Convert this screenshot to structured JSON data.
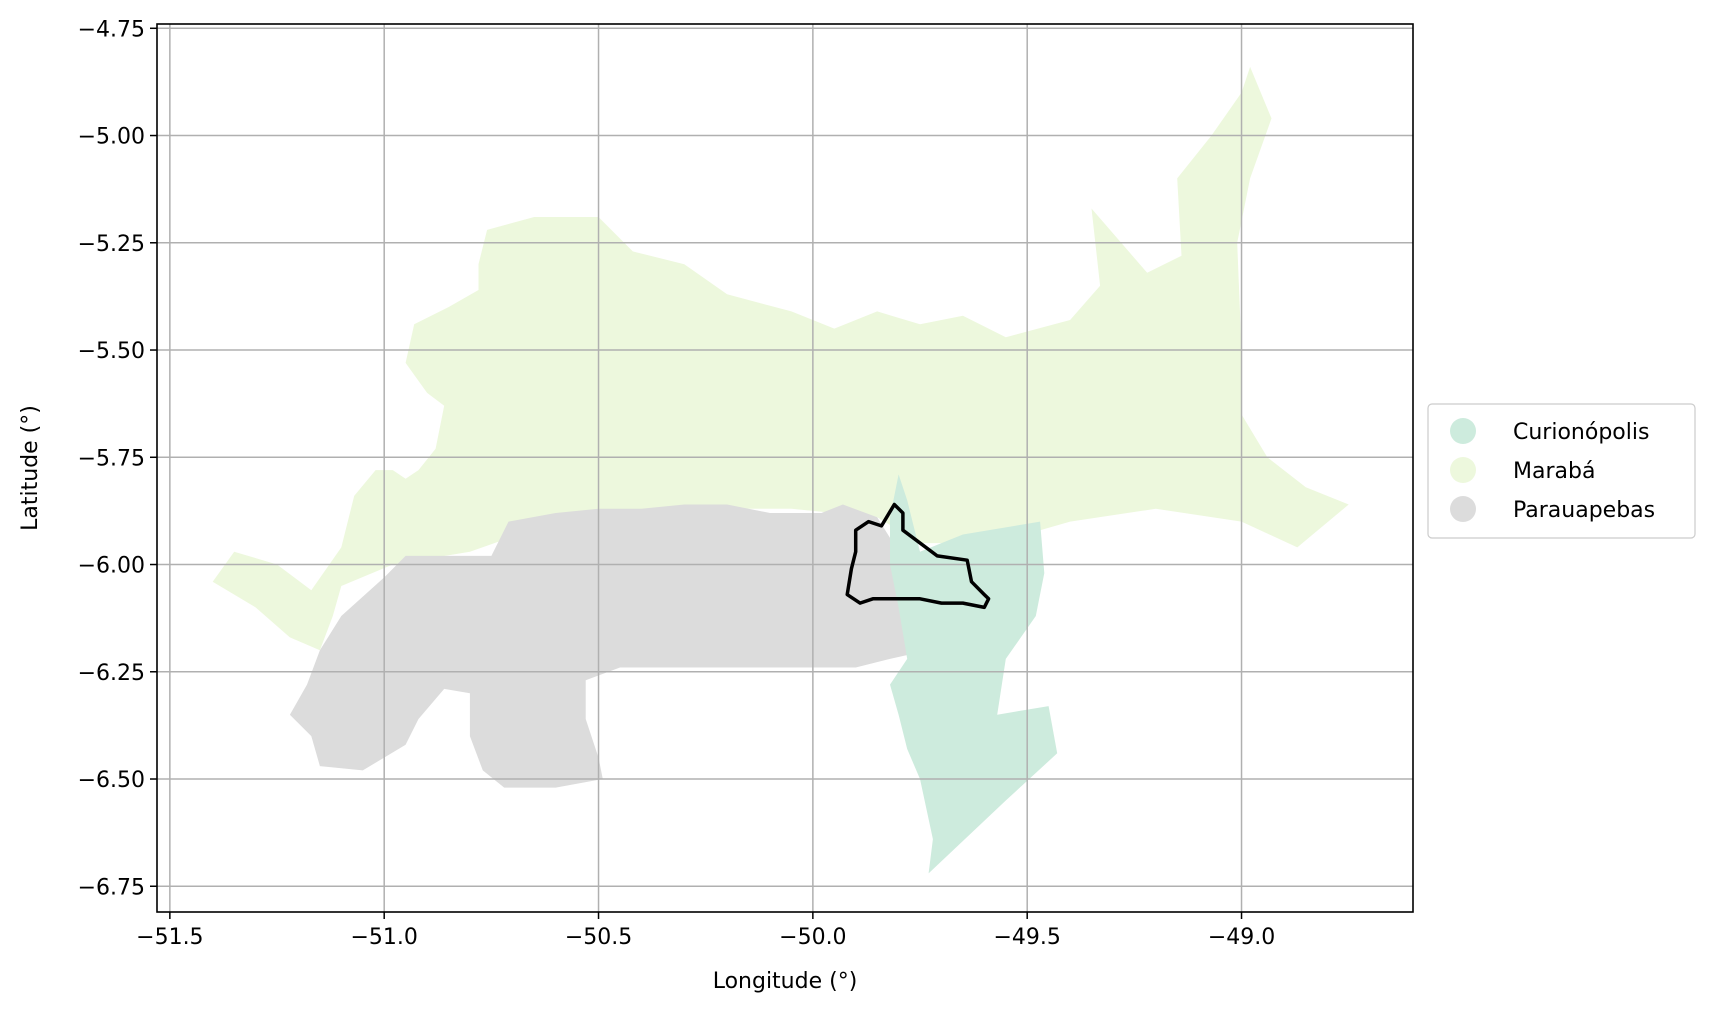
{
  "chart_data": {
    "type": "choropleth-map",
    "xlabel": "Longitude (°)",
    "ylabel": "Latitude (°)",
    "xlim": [
      -51.53,
      -48.6
    ],
    "ylim": [
      -6.81,
      -4.74
    ],
    "xticks": [
      -51.5,
      -51.0,
      -50.5,
      -50.0,
      -49.5,
      -49.0
    ],
    "yticks": [
      -4.75,
      -5.0,
      -5.25,
      -5.5,
      -5.75,
      -6.0,
      -6.25,
      -6.5,
      -6.75
    ],
    "xtick_labels": [
      "−51.5",
      "−51.0",
      "−50.5",
      "−50.0",
      "−49.5",
      "−49.0"
    ],
    "ytick_labels": [
      "−4.75",
      "−5.00",
      "−5.25",
      "−5.50",
      "−5.75",
      "−6.00",
      "−6.25",
      "−6.50",
      "−6.75"
    ],
    "grid": true,
    "legend": {
      "placement": "right",
      "entries": [
        {
          "name": "Curionópolis",
          "color": "#cdebdd"
        },
        {
          "name": "Marabá",
          "color": "#edf8dd"
        },
        {
          "name": "Parauapebas",
          "color": "#dcdcdc"
        }
      ]
    },
    "regions": [
      {
        "name": "Marabá",
        "color": "#edf8dd",
        "coords": [
          [
            -51.4,
            -6.04
          ],
          [
            -51.35,
            -5.97
          ],
          [
            -51.25,
            -6.0
          ],
          [
            -51.17,
            -6.06
          ],
          [
            -51.1,
            -5.96
          ],
          [
            -51.07,
            -5.84
          ],
          [
            -51.02,
            -5.78
          ],
          [
            -50.98,
            -5.78
          ],
          [
            -50.95,
            -5.8
          ],
          [
            -50.92,
            -5.78
          ],
          [
            -50.88,
            -5.73
          ],
          [
            -50.86,
            -5.63
          ],
          [
            -50.9,
            -5.6
          ],
          [
            -50.95,
            -5.53
          ],
          [
            -50.93,
            -5.44
          ],
          [
            -50.85,
            -5.4
          ],
          [
            -50.78,
            -5.36
          ],
          [
            -50.78,
            -5.3
          ],
          [
            -50.76,
            -5.22
          ],
          [
            -50.65,
            -5.19
          ],
          [
            -50.5,
            -5.19
          ],
          [
            -50.42,
            -5.27
          ],
          [
            -50.3,
            -5.3
          ],
          [
            -50.2,
            -5.37
          ],
          [
            -50.05,
            -5.41
          ],
          [
            -49.95,
            -5.45
          ],
          [
            -49.85,
            -5.41
          ],
          [
            -49.75,
            -5.44
          ],
          [
            -49.65,
            -5.42
          ],
          [
            -49.55,
            -5.47
          ],
          [
            -49.4,
            -5.43
          ],
          [
            -49.33,
            -5.35
          ],
          [
            -49.35,
            -5.17
          ],
          [
            -49.22,
            -5.32
          ],
          [
            -49.14,
            -5.28
          ],
          [
            -49.15,
            -5.1
          ],
          [
            -49.07,
            -5.0
          ],
          [
            -49.0,
            -4.9
          ],
          [
            -48.98,
            -4.84
          ],
          [
            -48.93,
            -4.96
          ],
          [
            -48.98,
            -5.1
          ],
          [
            -49.01,
            -5.25
          ],
          [
            -49.0,
            -5.5
          ],
          [
            -49.0,
            -5.65
          ],
          [
            -48.94,
            -5.75
          ],
          [
            -48.85,
            -5.82
          ],
          [
            -48.75,
            -5.86
          ],
          [
            -48.87,
            -5.96
          ],
          [
            -49.0,
            -5.9
          ],
          [
            -49.2,
            -5.87
          ],
          [
            -49.4,
            -5.9
          ],
          [
            -49.47,
            -5.92
          ],
          [
            -49.65,
            -5.95
          ],
          [
            -49.75,
            -5.95
          ],
          [
            -49.85,
            -5.89
          ],
          [
            -49.95,
            -5.88
          ],
          [
            -50.05,
            -5.87
          ],
          [
            -50.2,
            -5.87
          ],
          [
            -50.4,
            -5.88
          ],
          [
            -50.6,
            -5.9
          ],
          [
            -50.8,
            -5.97
          ],
          [
            -50.98,
            -6.0
          ],
          [
            -51.1,
            -6.05
          ],
          [
            -51.12,
            -6.12
          ],
          [
            -51.15,
            -6.2
          ],
          [
            -51.22,
            -6.17
          ],
          [
            -51.3,
            -6.1
          ],
          [
            -51.4,
            -6.04
          ]
        ]
      },
      {
        "name": "Parauapebas",
        "color": "#dcdcdc",
        "coords": [
          [
            -51.15,
            -6.2
          ],
          [
            -51.1,
            -6.12
          ],
          [
            -51.0,
            -6.03
          ],
          [
            -50.95,
            -5.98
          ],
          [
            -50.75,
            -5.98
          ],
          [
            -50.71,
            -5.9
          ],
          [
            -50.6,
            -5.88
          ],
          [
            -50.5,
            -5.87
          ],
          [
            -50.4,
            -5.87
          ],
          [
            -50.3,
            -5.86
          ],
          [
            -50.2,
            -5.86
          ],
          [
            -50.1,
            -5.88
          ],
          [
            -49.98,
            -5.88
          ],
          [
            -49.93,
            -5.86
          ],
          [
            -49.85,
            -5.89
          ],
          [
            -49.8,
            -5.97
          ],
          [
            -49.78,
            -6.07
          ],
          [
            -49.78,
            -6.14
          ],
          [
            -49.73,
            -6.2
          ],
          [
            -49.82,
            -6.22
          ],
          [
            -49.9,
            -6.24
          ],
          [
            -50.0,
            -6.24
          ],
          [
            -50.2,
            -6.24
          ],
          [
            -50.45,
            -6.24
          ],
          [
            -50.53,
            -6.27
          ],
          [
            -50.53,
            -6.36
          ],
          [
            -50.5,
            -6.45
          ],
          [
            -50.49,
            -6.5
          ],
          [
            -50.6,
            -6.52
          ],
          [
            -50.72,
            -6.52
          ],
          [
            -50.77,
            -6.48
          ],
          [
            -50.8,
            -6.4
          ],
          [
            -50.8,
            -6.3
          ],
          [
            -50.86,
            -6.29
          ],
          [
            -50.92,
            -6.36
          ],
          [
            -50.95,
            -6.42
          ],
          [
            -51.05,
            -6.48
          ],
          [
            -51.15,
            -6.47
          ],
          [
            -51.17,
            -6.4
          ],
          [
            -51.22,
            -6.35
          ],
          [
            -51.18,
            -6.28
          ],
          [
            -51.15,
            -6.2
          ]
        ]
      },
      {
        "name": "Curionópolis",
        "color": "#cdebdd",
        "coords": [
          [
            -49.82,
            -5.89
          ],
          [
            -49.8,
            -5.79
          ],
          [
            -49.78,
            -5.85
          ],
          [
            -49.75,
            -5.97
          ],
          [
            -49.65,
            -5.93
          ],
          [
            -49.47,
            -5.9
          ],
          [
            -49.46,
            -6.02
          ],
          [
            -49.48,
            -6.12
          ],
          [
            -49.55,
            -6.22
          ],
          [
            -49.57,
            -6.35
          ],
          [
            -49.45,
            -6.33
          ],
          [
            -49.43,
            -6.44
          ],
          [
            -49.55,
            -6.55
          ],
          [
            -49.73,
            -6.72
          ],
          [
            -49.72,
            -6.64
          ],
          [
            -49.75,
            -6.5
          ],
          [
            -49.78,
            -6.43
          ],
          [
            -49.8,
            -6.35
          ],
          [
            -49.82,
            -6.28
          ],
          [
            -49.78,
            -6.22
          ],
          [
            -49.8,
            -6.1
          ],
          [
            -49.82,
            -6.0
          ],
          [
            -49.82,
            -5.89
          ]
        ]
      }
    ],
    "outline": {
      "color": "#000000",
      "coords": [
        [
          -49.92,
          -6.07
        ],
        [
          -49.91,
          -6.01
        ],
        [
          -49.9,
          -5.97
        ],
        [
          -49.9,
          -5.92
        ],
        [
          -49.87,
          -5.9
        ],
        [
          -49.84,
          -5.91
        ],
        [
          -49.81,
          -5.86
        ],
        [
          -49.79,
          -5.88
        ],
        [
          -49.79,
          -5.92
        ],
        [
          -49.71,
          -5.98
        ],
        [
          -49.64,
          -5.99
        ],
        [
          -49.63,
          -6.04
        ],
        [
          -49.6,
          -6.07
        ],
        [
          -49.59,
          -6.08
        ],
        [
          -49.6,
          -6.1
        ],
        [
          -49.65,
          -6.09
        ],
        [
          -49.7,
          -6.09
        ],
        [
          -49.75,
          -6.08
        ],
        [
          -49.79,
          -6.08
        ],
        [
          -49.83,
          -6.08
        ],
        [
          -49.86,
          -6.08
        ],
        [
          -49.89,
          -6.09
        ],
        [
          -49.92,
          -6.07
        ]
      ]
    }
  }
}
